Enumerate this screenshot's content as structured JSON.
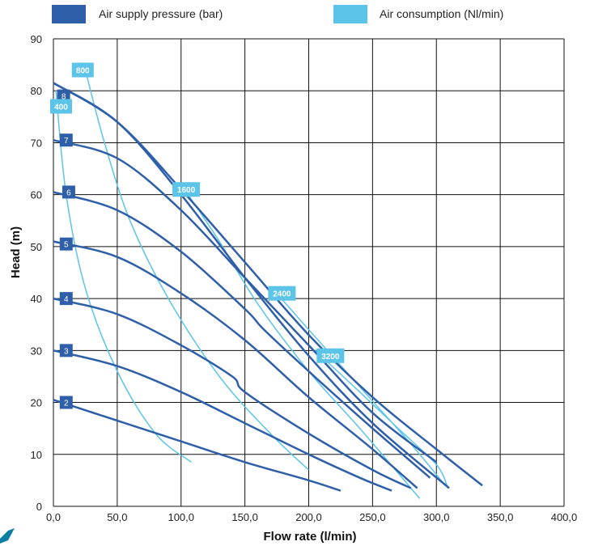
{
  "chart_data": {
    "type": "line",
    "xlabel": "Flow rate (l/min)",
    "ylabel": "Head (m)",
    "xlim": [
      0,
      400
    ],
    "ylim": [
      0,
      90
    ],
    "x_ticks": [
      "0,0",
      "50,0",
      "100,0",
      "150,0",
      "200,0",
      "250,0",
      "300,0",
      "350,0",
      "400,0"
    ],
    "y_ticks": [
      "0",
      "10",
      "20",
      "30",
      "40",
      "50",
      "60",
      "70",
      "80",
      "90"
    ],
    "grid": true,
    "legend": {
      "placement": "top",
      "items": [
        {
          "label": "Air supply pressure (bar)",
          "color": "#2f5fa8"
        },
        {
          "label": "Air consumption (Nl/min)",
          "color": "#5bc4e8"
        }
      ]
    },
    "pressure_series": [
      {
        "label": "2",
        "points": [
          [
            0,
            20.5
          ],
          [
            50,
            16.5
          ],
          [
            100,
            12.5
          ],
          [
            150,
            8.5
          ],
          [
            200,
            5
          ],
          [
            225,
            3
          ]
        ]
      },
      {
        "label": "3",
        "points": [
          [
            0,
            30
          ],
          [
            50,
            27
          ],
          [
            100,
            22
          ],
          [
            150,
            16
          ],
          [
            200,
            10
          ],
          [
            240,
            5.5
          ],
          [
            265,
            3
          ]
        ]
      },
      {
        "label": "4",
        "points": [
          [
            0,
            40
          ],
          [
            50,
            37
          ],
          [
            100,
            31
          ],
          [
            140,
            25
          ],
          [
            150,
            22
          ],
          [
            200,
            14
          ],
          [
            250,
            7
          ],
          [
            280,
            3.5
          ]
        ]
      },
      {
        "label": "5",
        "points": [
          [
            0,
            51
          ],
          [
            50,
            48
          ],
          [
            100,
            41
          ],
          [
            150,
            32
          ],
          [
            200,
            21
          ],
          [
            250,
            11
          ],
          [
            285,
            3.5
          ]
        ]
      },
      {
        "label": "6",
        "points": [
          [
            0,
            60.5
          ],
          [
            50,
            57
          ],
          [
            100,
            49
          ],
          [
            150,
            38
          ],
          [
            165,
            34
          ],
          [
            200,
            26
          ],
          [
            250,
            15
          ],
          [
            295,
            5.5
          ]
        ]
      },
      {
        "label": "7",
        "points": [
          [
            0,
            70.5
          ],
          [
            50,
            67
          ],
          [
            100,
            57
          ],
          [
            150,
            44
          ],
          [
            200,
            31
          ],
          [
            250,
            18
          ],
          [
            300,
            8.5
          ]
        ]
      },
      {
        "label": "8",
        "points": [
          [
            0,
            81.5
          ],
          [
            50,
            74
          ],
          [
            100,
            60
          ],
          [
            150,
            44
          ],
          [
            200,
            29
          ],
          [
            250,
            16
          ],
          [
            310,
            3.5
          ]
        ]
      },
      {
        "label": "",
        "points": [
          [
            0,
            81.5
          ],
          [
            50,
            74
          ],
          [
            100,
            61
          ],
          [
            150,
            47
          ],
          [
            200,
            33
          ],
          [
            250,
            21
          ],
          [
            300,
            11
          ],
          [
            336,
            4
          ]
        ]
      }
    ],
    "air_series": [
      {
        "label": "400",
        "points": [
          [
            2,
            80
          ],
          [
            10,
            60
          ],
          [
            25,
            42
          ],
          [
            50,
            26
          ],
          [
            80,
            14
          ],
          [
            108,
            8.5
          ]
        ]
      },
      {
        "label": "800",
        "points": [
          [
            25,
            84
          ],
          [
            40,
            70
          ],
          [
            60,
            55
          ],
          [
            90,
            40
          ],
          [
            130,
            25
          ],
          [
            170,
            14
          ],
          [
            200,
            7
          ]
        ]
      },
      {
        "label": "1600",
        "points": [
          [
            100,
            62
          ],
          [
            130,
            51
          ],
          [
            160,
            39
          ],
          [
            200,
            26
          ],
          [
            240,
            15
          ],
          [
            287,
            1.5
          ]
        ]
      },
      {
        "label": "2400",
        "points": [
          [
            175,
            41
          ],
          [
            200,
            34
          ],
          [
            240,
            23
          ],
          [
            280,
            12
          ],
          [
            307,
            4
          ]
        ]
      },
      {
        "label": "3200",
        "points": [
          [
            205,
            30
          ],
          [
            240,
            22
          ],
          [
            270,
            15
          ],
          [
            300,
            8
          ],
          [
            309,
            3.5
          ]
        ]
      }
    ],
    "pressure_badges": [
      {
        "label": "8",
        "x": 8,
        "y": 79
      },
      {
        "label": "7",
        "x": 10,
        "y": 70.5
      },
      {
        "label": "6",
        "x": 12,
        "y": 60.5
      },
      {
        "label": "5",
        "x": 10,
        "y": 50.5
      },
      {
        "label": "4",
        "x": 10,
        "y": 40
      },
      {
        "label": "3",
        "x": 10,
        "y": 30
      },
      {
        "label": "2",
        "x": 10,
        "y": 20
      }
    ],
    "air_badges": [
      {
        "label": "800",
        "x": 23,
        "y": 84
      },
      {
        "label": "400",
        "x": 6,
        "y": 77
      },
      {
        "label": "1600",
        "x": 104,
        "y": 61
      },
      {
        "label": "2400",
        "x": 179,
        "y": 41
      },
      {
        "label": "3200",
        "x": 217,
        "y": 29
      }
    ]
  },
  "brand": {
    "pressure_color": "#2f5fa8",
    "air_color": "#5bc4e8",
    "corner_mark": "logo-mark-icon"
  }
}
